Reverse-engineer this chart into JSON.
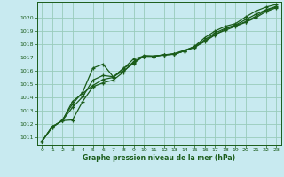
{
  "xlabel": "Graphe pression niveau de la mer (hPa)",
  "background_color": "#c8eaf0",
  "grid_color": "#99ccbb",
  "line_color": "#1a5c1a",
  "xlim": [
    -0.5,
    23.5
  ],
  "ylim": [
    1010.4,
    1021.2
  ],
  "yticks": [
    1011,
    1012,
    1013,
    1014,
    1015,
    1016,
    1017,
    1018,
    1019,
    1020
  ],
  "xticks": [
    0,
    1,
    2,
    3,
    4,
    5,
    6,
    7,
    8,
    9,
    10,
    11,
    12,
    13,
    14,
    15,
    16,
    17,
    18,
    19,
    20,
    21,
    22,
    23
  ],
  "series": [
    [
      1010.7,
      1011.8,
      1012.25,
      1013.7,
      1014.3,
      1014.9,
      1015.35,
      1015.5,
      1016.2,
      1016.6,
      1017.15,
      1017.1,
      1017.2,
      1017.25,
      1017.5,
      1017.85,
      1018.5,
      1019.0,
      1019.35,
      1019.55,
      1020.05,
      1020.5,
      1020.8,
      1021.0
    ],
    [
      1010.7,
      1011.8,
      1012.25,
      1012.3,
      1013.7,
      1014.8,
      1015.1,
      1015.3,
      1015.9,
      1016.7,
      1017.1,
      1017.1,
      1017.2,
      1017.25,
      1017.5,
      1017.75,
      1018.25,
      1018.75,
      1019.05,
      1019.35,
      1019.65,
      1020.0,
      1020.45,
      1020.75
    ],
    [
      1010.7,
      1011.75,
      1012.25,
      1013.25,
      1014.05,
      1015.3,
      1015.65,
      1015.55,
      1016.15,
      1016.9,
      1017.1,
      1017.1,
      1017.2,
      1017.25,
      1017.5,
      1017.8,
      1018.35,
      1018.85,
      1019.2,
      1019.45,
      1019.85,
      1020.25,
      1020.6,
      1020.85
    ],
    [
      1010.7,
      1011.75,
      1012.3,
      1013.5,
      1014.4,
      1016.2,
      1016.5,
      1015.55,
      1016.0,
      1016.55,
      1017.1,
      1017.1,
      1017.2,
      1017.3,
      1017.55,
      1017.8,
      1018.2,
      1018.7,
      1019.15,
      1019.4,
      1019.7,
      1020.1,
      1020.55,
      1020.8
    ]
  ]
}
